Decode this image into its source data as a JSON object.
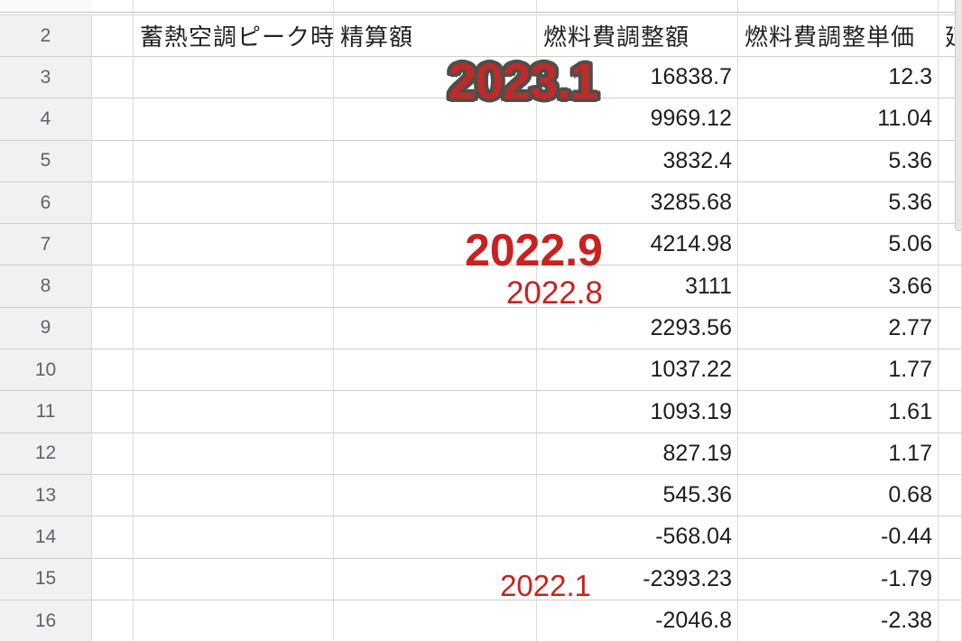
{
  "grid": {
    "header_row_number": "2",
    "columns": {
      "b_label": "蓄熱空調ピーク時",
      "c_label": "精算額",
      "d_label": "燃料費調整額",
      "e_label": "燃料費調整単価",
      "f_label_clipped": "延"
    },
    "rows": [
      {
        "n": "3",
        "chosei_gaku": "16838.7",
        "tanka": "12.3"
      },
      {
        "n": "4",
        "chosei_gaku": "9969.12",
        "tanka": "11.04"
      },
      {
        "n": "5",
        "chosei_gaku": "3832.4",
        "tanka": "5.36"
      },
      {
        "n": "6",
        "chosei_gaku": "3285.68",
        "tanka": "5.36"
      },
      {
        "n": "7",
        "chosei_gaku": "4214.98",
        "tanka": "5.06"
      },
      {
        "n": "8",
        "chosei_gaku": "3111",
        "tanka": "3.66"
      },
      {
        "n": "9",
        "chosei_gaku": "2293.56",
        "tanka": "2.77"
      },
      {
        "n": "10",
        "chosei_gaku": "1037.22",
        "tanka": "1.77"
      },
      {
        "n": "11",
        "chosei_gaku": "1093.19",
        "tanka": "1.61"
      },
      {
        "n": "12",
        "chosei_gaku": "827.19",
        "tanka": "1.17"
      },
      {
        "n": "13",
        "chosei_gaku": "545.36",
        "tanka": "0.68"
      },
      {
        "n": "14",
        "chosei_gaku": "-568.04",
        "tanka": "-0.44"
      },
      {
        "n": "15",
        "chosei_gaku": "-2393.23",
        "tanka": "-1.79"
      },
      {
        "n": "16",
        "chosei_gaku": "-2046.8",
        "tanka": "-2.38"
      }
    ]
  },
  "annotations": {
    "a2023_1": "2023.1",
    "a2022_9": "2022.9",
    "a2022_8": "2022.8",
    "a2022_1": "2022.1"
  },
  "colors": {
    "annotation_red": "#c9211f",
    "annotation_outline_gray": "#514e4a",
    "row_header_bg": "#f1f1f2",
    "gridline": "#cecece"
  }
}
